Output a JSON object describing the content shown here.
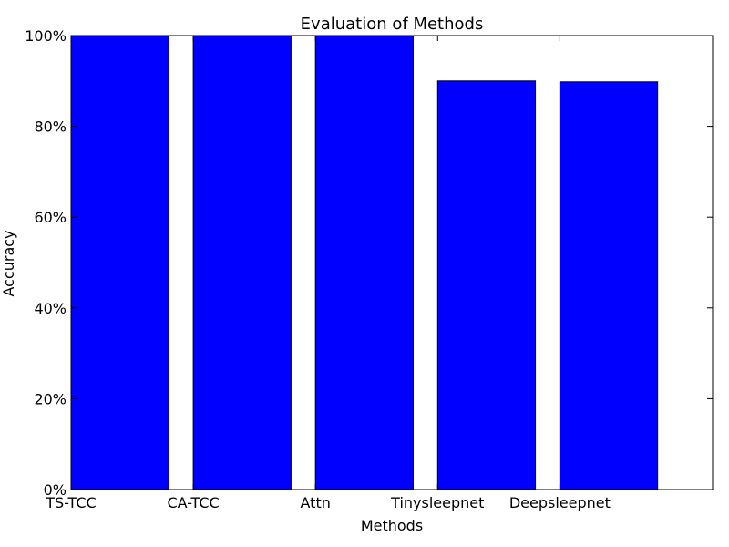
{
  "chart_data": {
    "type": "bar",
    "title": "Evaluation of Methods",
    "xlabel": "Methods",
    "ylabel": "Accuracy",
    "categories": [
      "TS-TCC",
      "CA-TCC",
      "Attn",
      "Tinysleepnet",
      "Deepsleepnet"
    ],
    "values": [
      1.0,
      1.0,
      1.0,
      0.9,
      0.898
    ],
    "ylim": [
      0,
      1.0
    ],
    "yticks": [
      0,
      0.2,
      0.4,
      0.6,
      0.8,
      1.0
    ],
    "ytick_labels": [
      "0%",
      "20%",
      "40%",
      "60%",
      "80%",
      "100%"
    ],
    "grid": false,
    "bar_color": "#0000ff",
    "edge_color": "#000000"
  }
}
